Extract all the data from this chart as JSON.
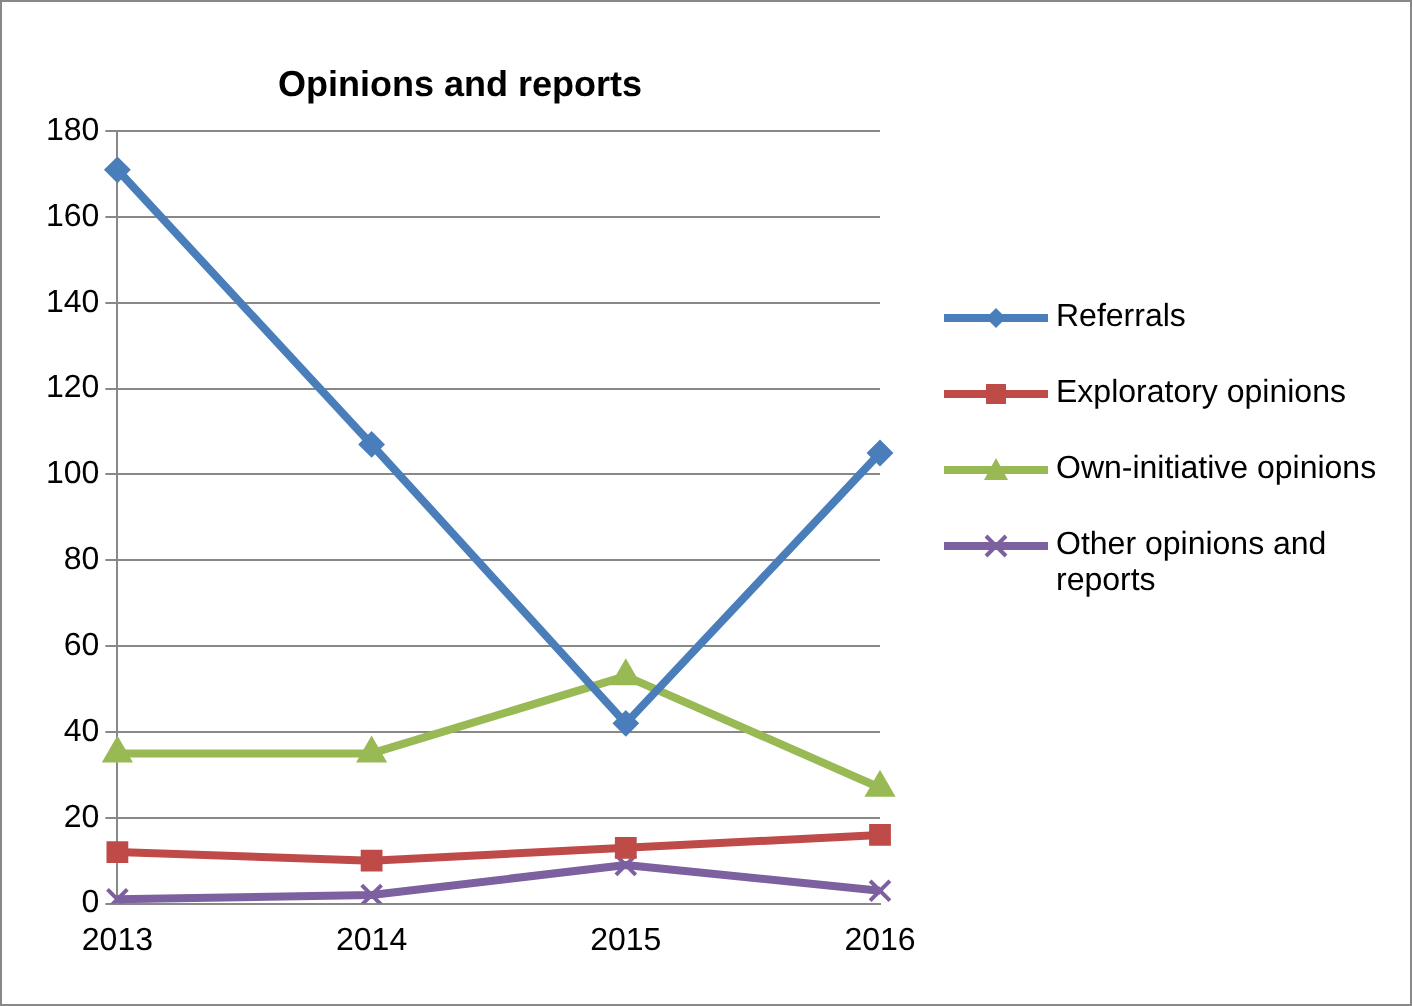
{
  "chart_data": {
    "type": "line",
    "title": "Opinions and reports",
    "categories": [
      "2013",
      "2014",
      "2015",
      "2016"
    ],
    "series": [
      {
        "name": "Referrals",
        "color": "#4a7ebb",
        "marker": "diamond",
        "values": [
          171,
          107,
          42,
          105
        ]
      },
      {
        "name": "Exploratory opinions",
        "color": "#be4b48",
        "marker": "square",
        "values": [
          12,
          10,
          13,
          16
        ]
      },
      {
        "name": "Own-initiative opinions",
        "color": "#98b954",
        "marker": "triangle",
        "values": [
          35,
          35,
          53,
          27
        ]
      },
      {
        "name": "Other opinions and reports",
        "color": "#7d60a0",
        "marker": "cross",
        "values": [
          1,
          2,
          9,
          3
        ]
      }
    ],
    "ylim": [
      0,
      180
    ],
    "yticks": [
      0,
      20,
      40,
      60,
      80,
      100,
      120,
      140,
      160,
      180
    ],
    "grid": "y",
    "legend": "right",
    "line_style": "solid"
  }
}
